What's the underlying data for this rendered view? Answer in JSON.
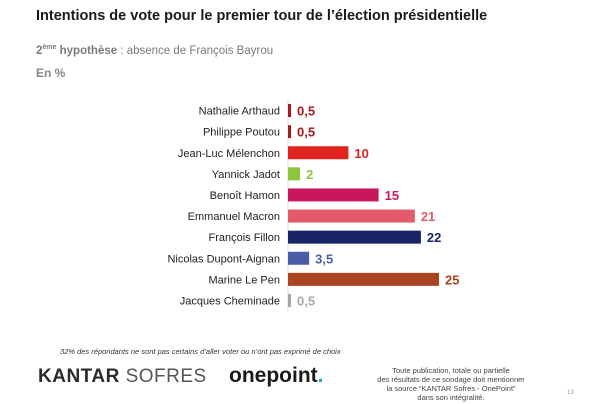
{
  "chart_data": {
    "type": "bar",
    "orientation": "horizontal",
    "title": "Intentions de vote pour le premier tour de l’élection présidentielle",
    "subtitle": {
      "ordinal_number": "2",
      "ordinal_suffix": "ème",
      "hypothesis_label": "hypothèse",
      "hypothesis_text": " : absence de François Bayrou"
    },
    "unit": "En %",
    "categories": [
      "Nathalie Arthaud",
      "Philippe Poutou",
      "Jean-Luc Mélenchon",
      "Yannick Jadot",
      "Benoît Hamon",
      "Emmanuel Macron",
      "François Fillon",
      "Nicolas Dupont-Aignan",
      "Marine Le Pen",
      "Jacques Cheminade"
    ],
    "values": [
      0.5,
      0.5,
      10,
      2,
      15,
      21,
      22,
      3.5,
      25,
      0.5
    ],
    "value_labels": [
      "0,5",
      "0,5",
      "10",
      "2",
      "15",
      "21",
      "22",
      "3,5",
      "25",
      "0,5"
    ],
    "colors": [
      "#a8181c",
      "#a8181c",
      "#e0231f",
      "#8cc63f",
      "#c8175c",
      "#e55a6a",
      "#1b2566",
      "#4a5ea8",
      "#a8441f",
      "#a6a6a6"
    ],
    "xlim": [
      0,
      25
    ],
    "xlabel": "",
    "ylabel": ""
  },
  "footnote": "32% des répondants ne sont pas certains d’aller voter ou n’ont pas exprimé de choix",
  "branding": {
    "kantar_bold": "KANTAR",
    "kantar_light": " SOFRES",
    "onepoint": "onepoint",
    "onepoint_dot": "."
  },
  "legal_lines": [
    "Toute publication, totale ou partielle",
    "des résultats de ce sondage doit mentionner",
    "la source “KANTAR Sofres - OnePoint”",
    "dans son intégralité."
  ],
  "page_number": "13"
}
